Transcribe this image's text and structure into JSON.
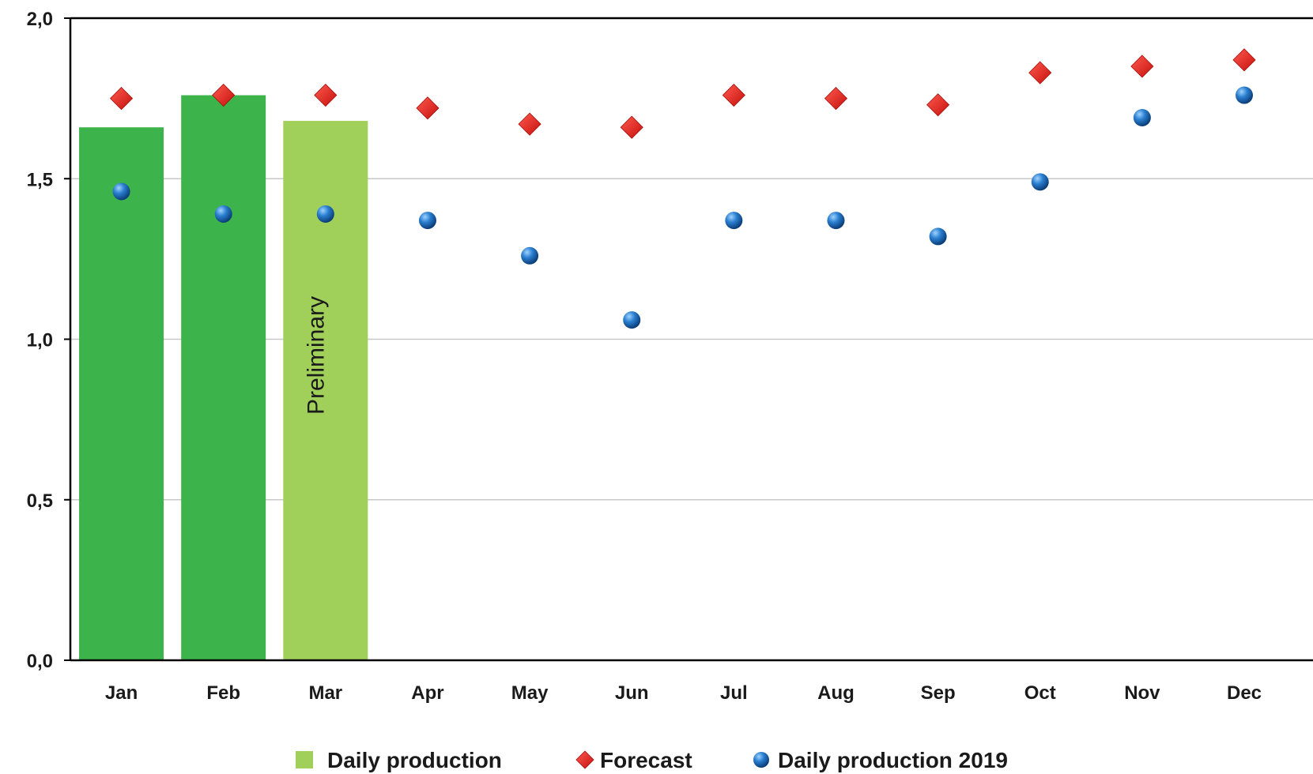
{
  "chart_data": {
    "type": "bar",
    "categories": [
      "Jan",
      "Feb",
      "Mar",
      "Apr",
      "May",
      "Jun",
      "Jul",
      "Aug",
      "Sep",
      "Oct",
      "Nov",
      "Dec"
    ],
    "series": [
      {
        "name": "Daily production",
        "kind": "bar",
        "values": [
          1.66,
          1.76,
          1.68,
          null,
          null,
          null,
          null,
          null,
          null,
          null,
          null,
          null
        ]
      },
      {
        "name": "Forecast",
        "kind": "scatter",
        "marker": "diamond",
        "values": [
          1.75,
          1.76,
          1.76,
          1.72,
          1.67,
          1.66,
          1.76,
          1.75,
          1.73,
          1.83,
          1.85,
          1.87
        ]
      },
      {
        "name": "Daily production 2019",
        "kind": "scatter",
        "marker": "circle",
        "values": [
          1.46,
          1.39,
          1.39,
          1.37,
          1.26,
          1.06,
          1.37,
          1.37,
          1.32,
          1.49,
          1.69,
          1.76
        ]
      }
    ],
    "annotations": [
      {
        "category": "Mar",
        "text": "Preliminary"
      }
    ],
    "yticks": [
      "0,0",
      "0,5",
      "1,0",
      "1,5",
      "2,0"
    ],
    "ylim": [
      0,
      2.0
    ],
    "grid": true,
    "legend": "bottom",
    "colors": {
      "bar_actual": "#3cb44b",
      "bar_preliminary": "#a0cf5a",
      "forecast": "#e0201b",
      "production_2019": "#1f6fb8",
      "grid": "#c8c8c8",
      "axis": "#000000"
    }
  }
}
